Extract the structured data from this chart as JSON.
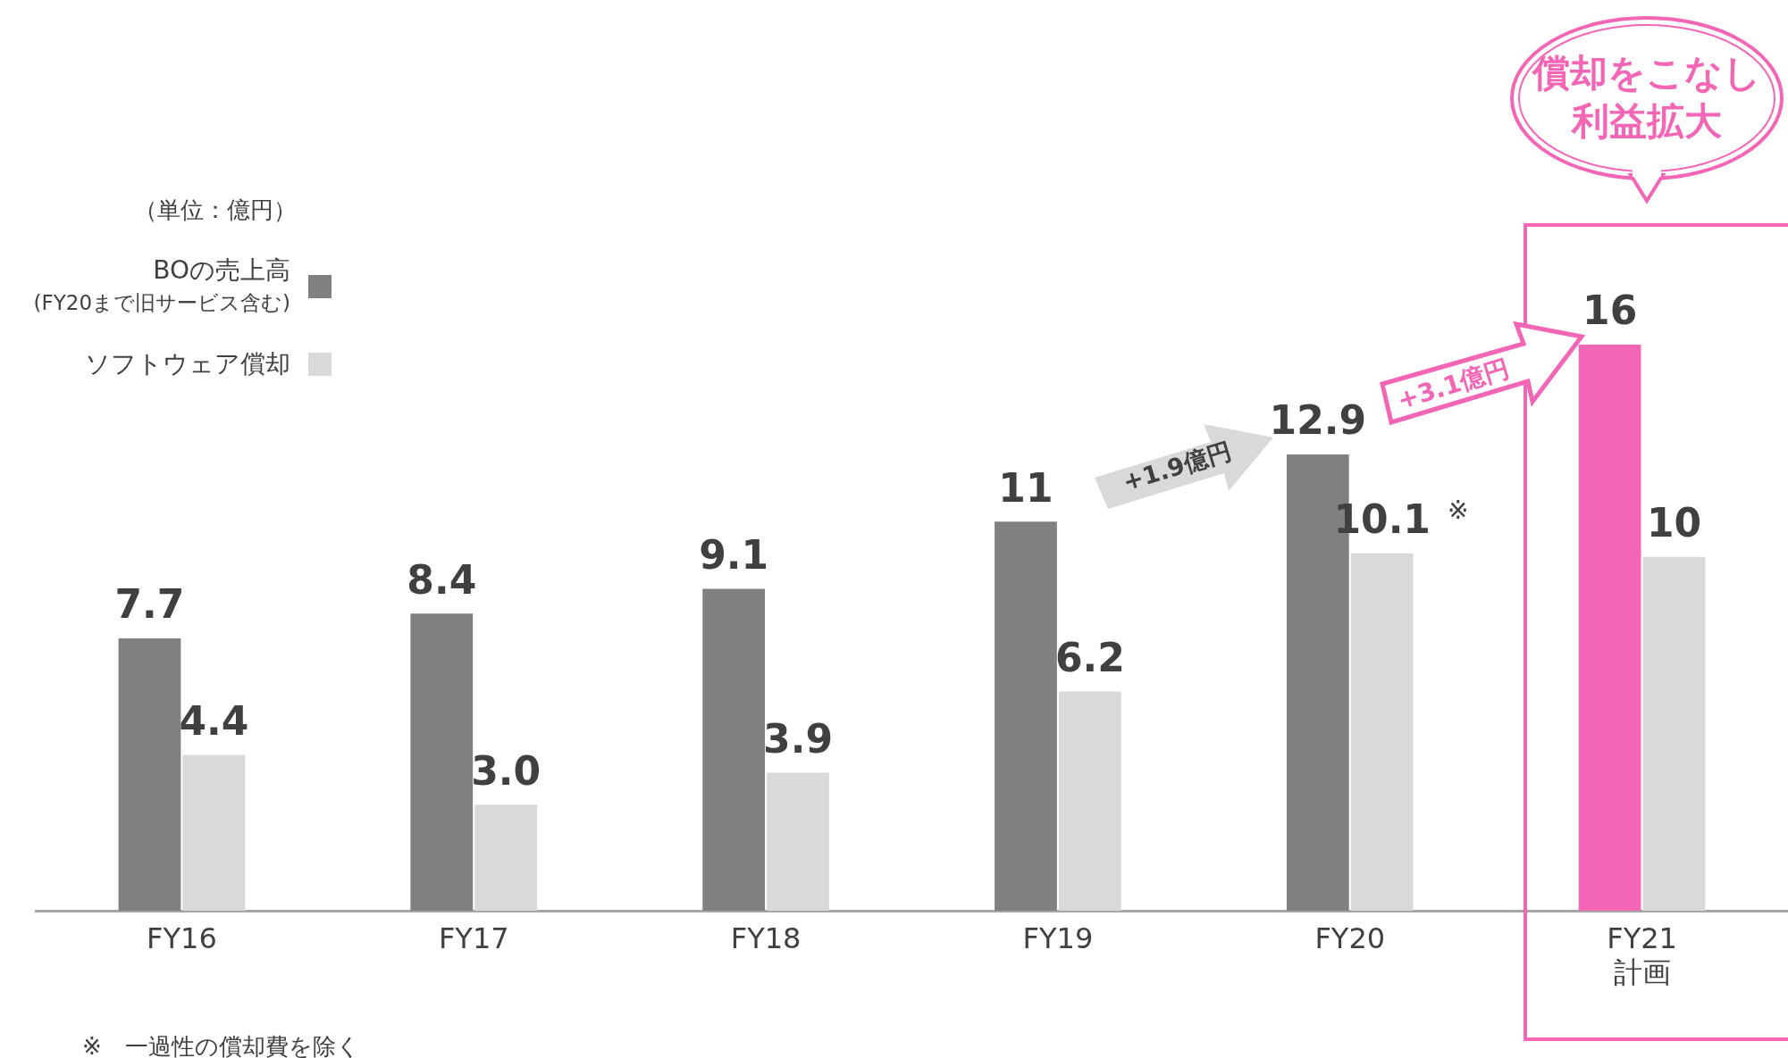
{
  "chart_data": {
    "type": "bar",
    "categories": [
      "FY16",
      "FY17",
      "FY18",
      "FY19",
      "FY20",
      "FY21\n計画"
    ],
    "series": [
      {
        "name": "BOの売上高\n(FY20まで旧サービス含む)",
        "color": "#808080",
        "colors": [
          "#808080",
          "#808080",
          "#808080",
          "#808080",
          "#808080",
          "#f365b5"
        ],
        "values": [
          7.7,
          8.4,
          9.1,
          11,
          12.9,
          16
        ],
        "value_labels": [
          "7.7",
          "8.4",
          "9.1",
          "11",
          "12.9",
          "16"
        ]
      },
      {
        "name": "ソフトウェア償却",
        "color": "#d9d9d9",
        "values": [
          4.4,
          3.0,
          3.9,
          6.2,
          10.1,
          10
        ],
        "value_labels": [
          "4.4",
          "3.0",
          "3.9",
          "6.2",
          "10.1",
          "10"
        ]
      }
    ],
    "legend": "left",
    "grid": false,
    "tick_labels": "x",
    "annotations": [
      "（単位：億円）",
      "+1.9億円",
      "+3.1億円",
      "償却をこなし",
      "利益拡大",
      "※",
      "※　一過性の償却費を除く"
    ]
  }
}
